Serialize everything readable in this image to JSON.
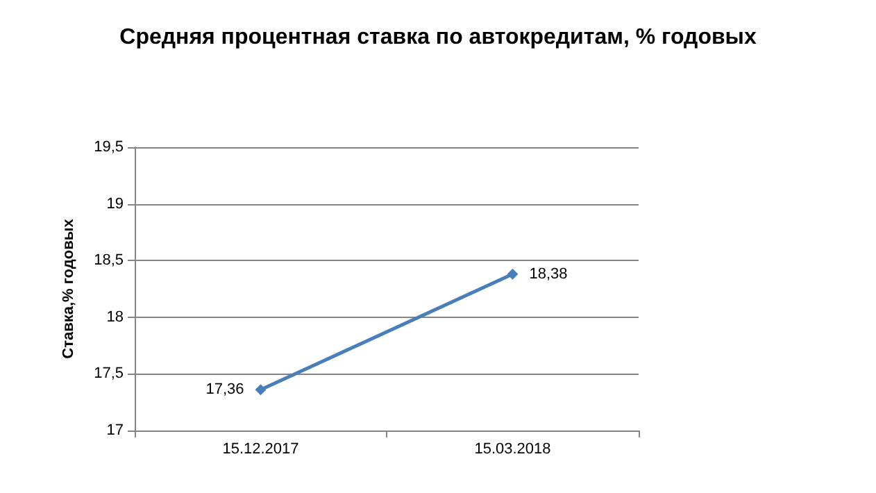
{
  "chart_data": {
    "type": "line",
    "title": "Средняя процентная ставка по автокредитам, % годовых",
    "ylabel": "Ставка,% годовых",
    "categories": [
      "15.12.2017",
      "15.03.2018"
    ],
    "series": [
      {
        "color": "#4a7ebb",
        "values": [
          17.36,
          18.38
        ],
        "value_labels": [
          "17,36",
          "18,38"
        ]
      }
    ],
    "ylim": [
      17,
      19.5
    ],
    "yticks": [
      17,
      {
        "value": 17.5,
        "label": "17,5"
      },
      18,
      {
        "value": 18.5,
        "label": "18,5"
      },
      19,
      {
        "value": 19.5,
        "label": "19,5"
      }
    ],
    "grid": "y",
    "marker": "diamond",
    "line_style": "solid"
  }
}
